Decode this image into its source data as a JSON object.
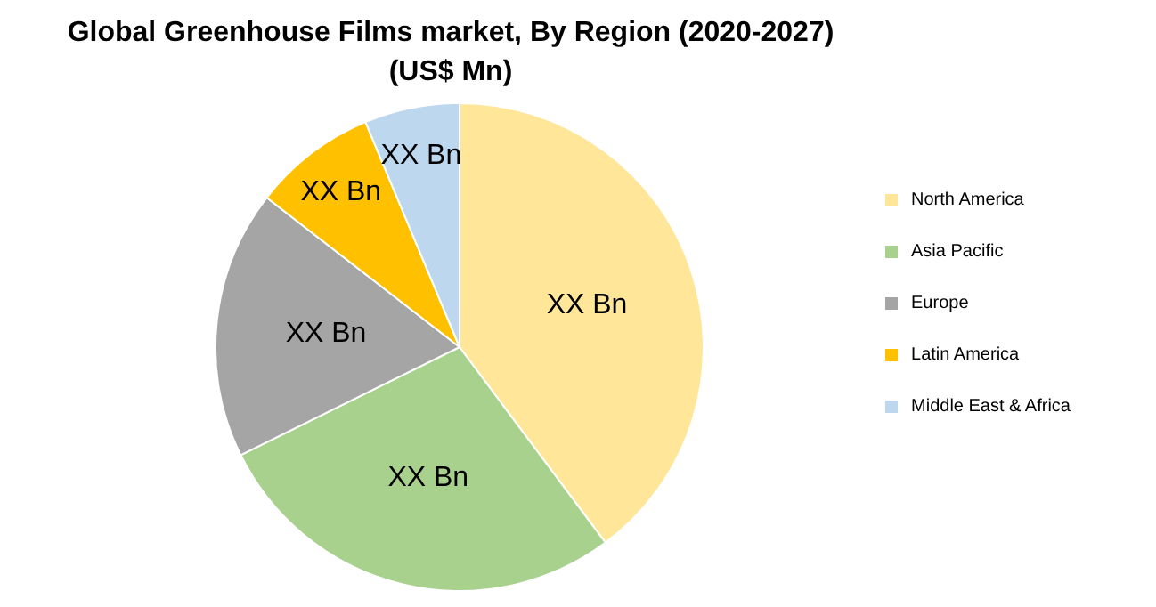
{
  "chart_data": {
    "type": "pie",
    "title": "Global Greenhouse Films market, By Region (2020-2027) (US$ Mn)",
    "categories": [
      "North America",
      "Asia Pacific",
      "Europe",
      "Latin America",
      "Middle East & Africa"
    ],
    "values": [
      39.8,
      27.9,
      17.8,
      8.2,
      6.3
    ],
    "colors": [
      "#ffe699",
      "#a9d18e",
      "#a5a5a5",
      "#ffc000",
      "#bdd7ee"
    ],
    "value_labels": [
      "XX Bn",
      "XX Bn",
      "XX Bn",
      "XX Bn",
      "XX Bn"
    ],
    "legend": "right"
  }
}
